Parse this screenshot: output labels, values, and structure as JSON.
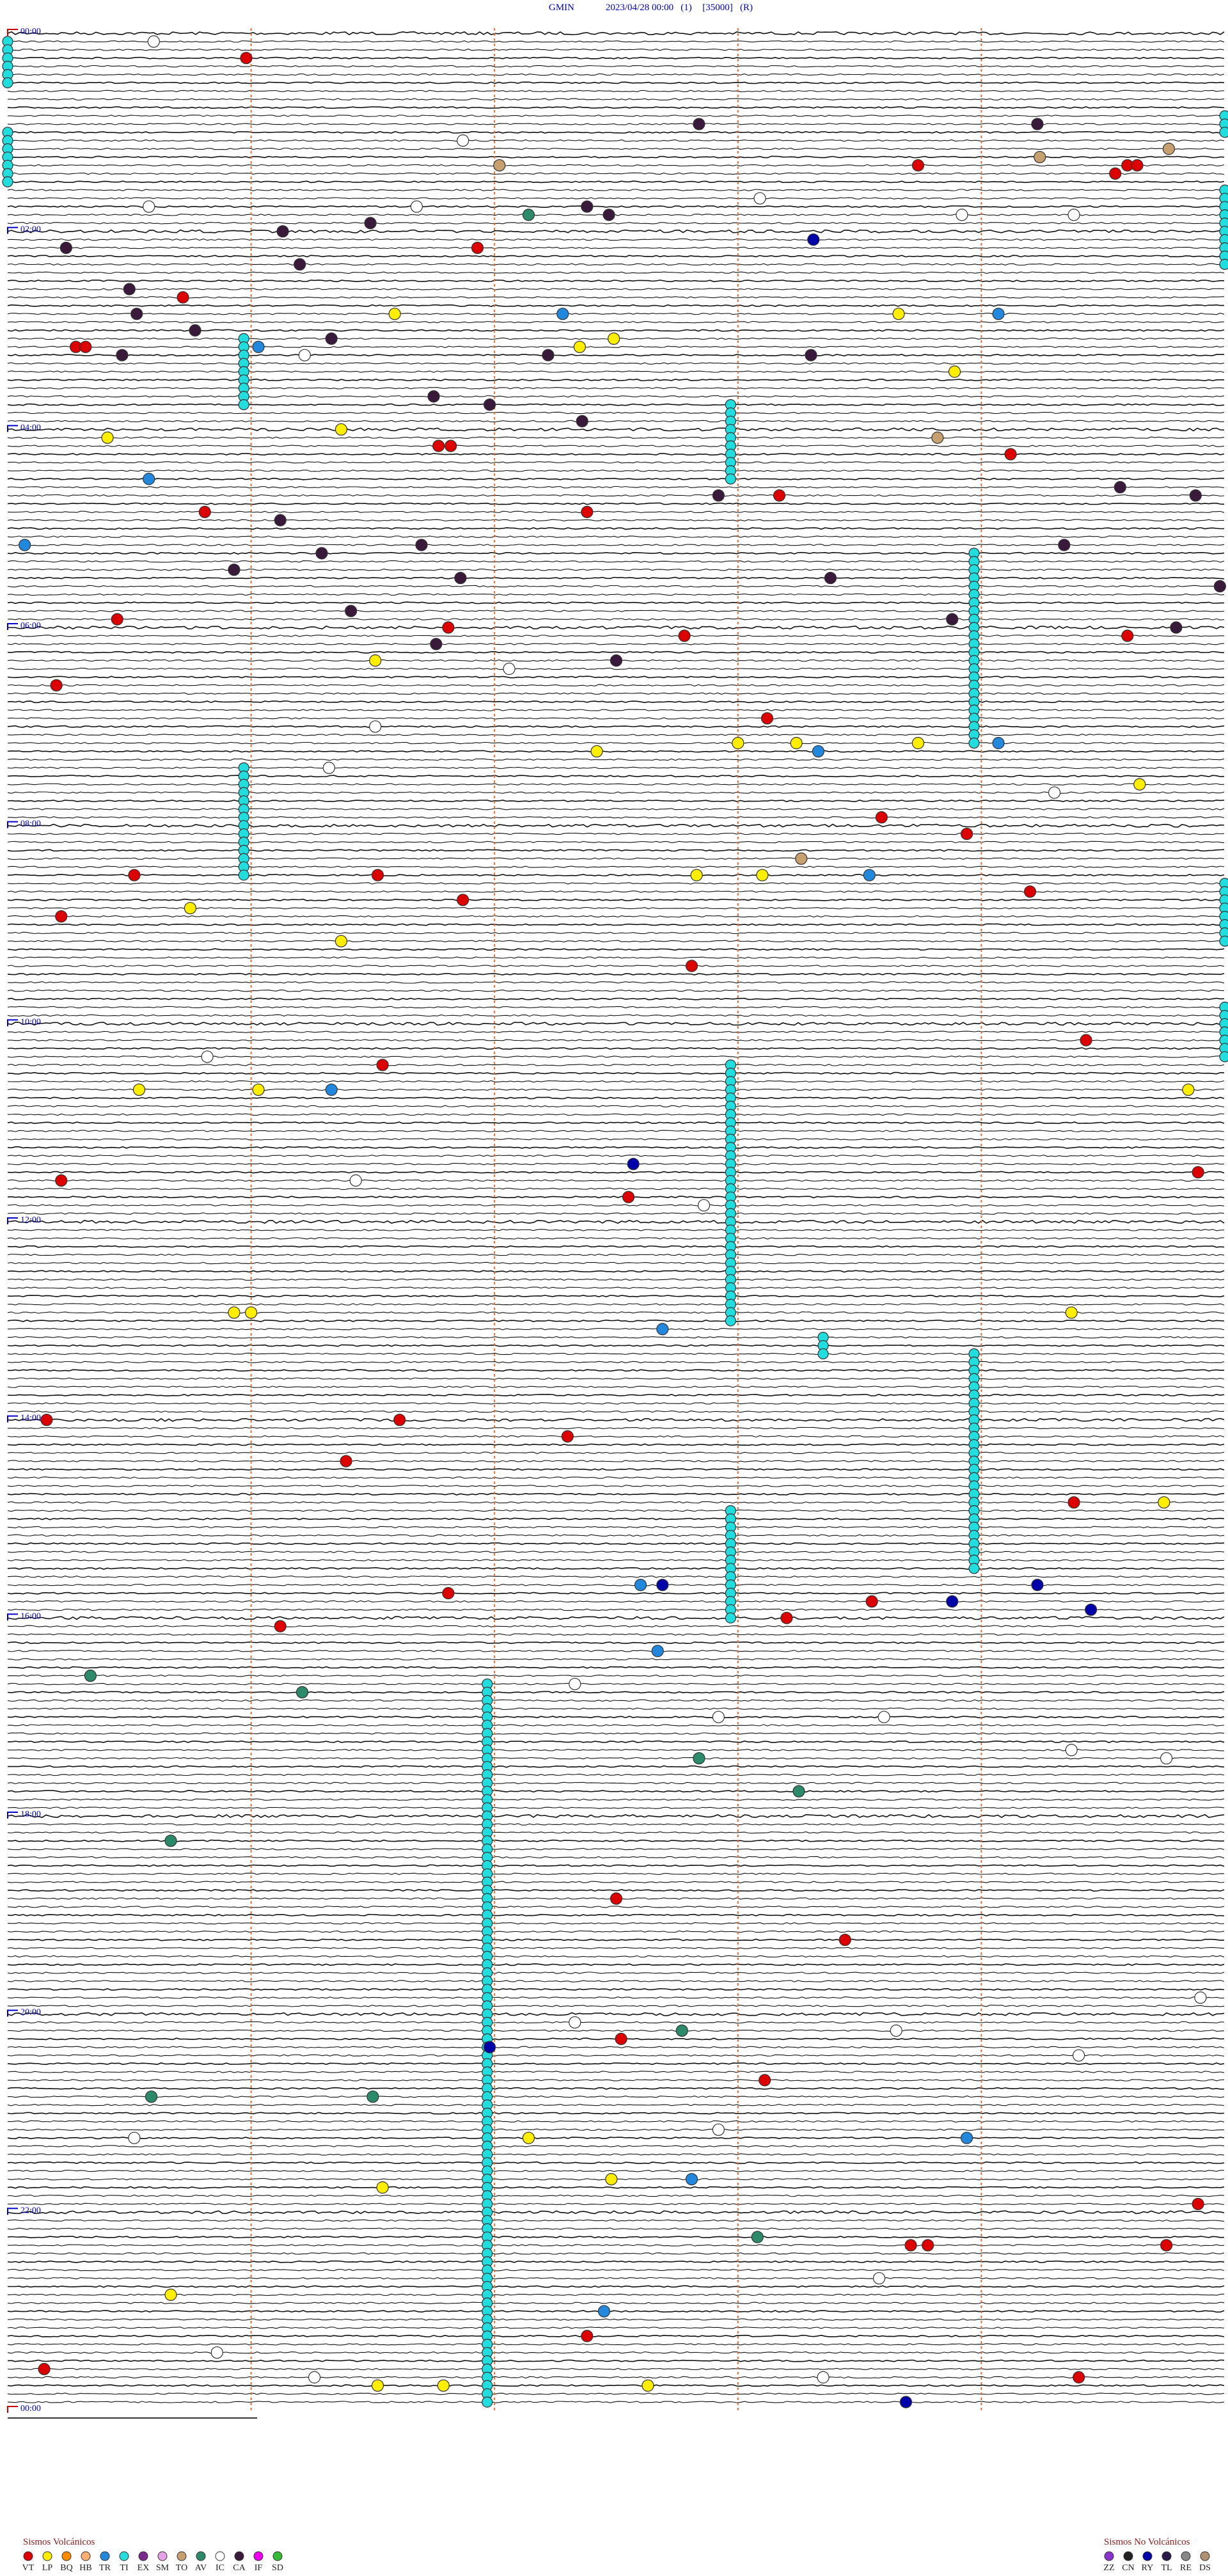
{
  "header": {
    "station": "GMIN",
    "datetime": "2023/04/28 00:00",
    "channel": "(1)",
    "gain": "[35000]",
    "mode": "(R)"
  },
  "hour_labels": [
    "00:00",
    "02:00",
    "04:00",
    "06:00",
    "08:00",
    "10:00",
    "12:00",
    "14:00",
    "16:00",
    "18:00",
    "20:00",
    "22:00",
    "00:00"
  ],
  "legend_volcanic": {
    "title": "Sismos Volcánicos",
    "types": [
      {
        "code": "VT",
        "color": "#dd0000"
      },
      {
        "code": "LP",
        "color": "#ffee00"
      },
      {
        "code": "BQ",
        "color": "#ff8c00"
      },
      {
        "code": "HB",
        "color": "#ffb070"
      },
      {
        "code": "TR",
        "color": "#2288dd"
      },
      {
        "code": "TI",
        "color": "#22dddd"
      },
      {
        "code": "EX",
        "color": "#7a2a8a"
      },
      {
        "code": "SM",
        "color": "#e8a0e8"
      },
      {
        "code": "TO",
        "color": "#c8a070"
      },
      {
        "code": "AV",
        "color": "#2a8a6a"
      },
      {
        "code": "IC",
        "color": "#ffffff"
      },
      {
        "code": "CA",
        "color": "#3a1a3a"
      },
      {
        "code": "IF",
        "color": "#ee00ee"
      },
      {
        "code": "SD",
        "color": "#33bb33"
      }
    ]
  },
  "legend_non_volcanic": {
    "title": "Sismos No Volcánicos",
    "types": [
      {
        "code": "ZZ",
        "color": "#8833cc"
      },
      {
        "code": "CN",
        "color": "#222222"
      },
      {
        "code": "RY",
        "color": "#0000aa"
      },
      {
        "code": "TL",
        "color": "#2a1a4a"
      },
      {
        "code": "RE",
        "color": "#888888"
      },
      {
        "code": "DS",
        "color": "#b09070"
      }
    ]
  },
  "tremor_runs": [
    {
      "type": "TI",
      "min": 0,
      "rows": [
        1,
        6
      ]
    },
    {
      "type": "TI",
      "min": 5,
      "rows": [
        10,
        12
      ]
    },
    {
      "type": "TI",
      "min": 0,
      "rows": [
        12,
        18
      ]
    },
    {
      "type": "TI",
      "min": 5,
      "rows": [
        19,
        28
      ]
    },
    {
      "type": "TI",
      "min": 0.97,
      "rows": [
        37,
        45
      ]
    },
    {
      "type": "TI",
      "min": 2.97,
      "rows": [
        45,
        54
      ]
    },
    {
      "type": "TI",
      "min": 3.97,
      "rows": [
        63,
        86
      ]
    },
    {
      "type": "TI",
      "min": 0.97,
      "rows": [
        89,
        102
      ]
    },
    {
      "type": "TI",
      "min": 5,
      "rows": [
        103,
        110
      ]
    },
    {
      "type": "TI",
      "min": 5,
      "rows": [
        118,
        124
      ]
    },
    {
      "type": "TI",
      "min": 2.97,
      "rows": [
        125,
        156
      ]
    },
    {
      "type": "TI",
      "min": 3.97,
      "rows": [
        160,
        186
      ]
    },
    {
      "type": "TI",
      "min": 2.97,
      "rows": [
        179,
        192
      ]
    },
    {
      "type": "TI",
      "min": 1.97,
      "rows": [
        200,
        287
      ]
    },
    {
      "type": "TI",
      "min": 3.35,
      "rows": [
        158,
        160
      ]
    }
  ],
  "events": [
    {
      "row": 1,
      "min": 0.6,
      "type": "IC"
    },
    {
      "row": 3,
      "min": 0.98,
      "type": "VT"
    },
    {
      "row": 11,
      "min": 2.84,
      "type": "CA"
    },
    {
      "row": 11,
      "min": 4.23,
      "type": "CA"
    },
    {
      "row": 13,
      "min": 1.87,
      "type": "IC"
    },
    {
      "row": 16,
      "min": 2.02,
      "type": "TO"
    },
    {
      "row": 16,
      "min": 3.74,
      "type": "VT"
    },
    {
      "row": 16,
      "min": 4.6,
      "type": "VT"
    },
    {
      "row": 16,
      "min": 4.64,
      "type": "VT"
    },
    {
      "row": 17,
      "min": 4.55,
      "type": "VT"
    },
    {
      "row": 14,
      "min": 4.77,
      "type": "TO"
    },
    {
      "row": 15,
      "min": 4.24,
      "type": "TO"
    },
    {
      "row": 21,
      "min": 0.58,
      "type": "IC"
    },
    {
      "row": 22,
      "min": 2.14,
      "type": "AV"
    },
    {
      "row": 21,
      "min": 2.38,
      "type": "CA"
    },
    {
      "row": 22,
      "min": 2.47,
      "type": "CA"
    },
    {
      "row": 25,
      "min": 3.31,
      "type": "RY"
    },
    {
      "row": 22,
      "min": 3.92,
      "type": "IC"
    },
    {
      "row": 26,
      "min": 0.24,
      "type": "CA"
    },
    {
      "row": 26,
      "min": 1.93,
      "type": "VT"
    },
    {
      "row": 32,
      "min": 0.72,
      "type": "VT"
    },
    {
      "row": 34,
      "min": 1.59,
      "type": "LP"
    },
    {
      "row": 34,
      "min": 2.28,
      "type": "TR"
    },
    {
      "row": 34,
      "min": 3.66,
      "type": "LP"
    },
    {
      "row": 34,
      "min": 4.07,
      "type": "TR"
    },
    {
      "row": 38,
      "min": 0.28,
      "type": "VT"
    },
    {
      "row": 38,
      "min": 0.32,
      "type": "VT"
    },
    {
      "row": 38,
      "min": 2.35,
      "type": "LP"
    },
    {
      "row": 37,
      "min": 2.49,
      "type": "LP"
    },
    {
      "row": 38,
      "min": 1.03,
      "type": "TR"
    },
    {
      "row": 41,
      "min": 3.89,
      "type": "LP"
    },
    {
      "row": 49,
      "min": 0.41,
      "type": "LP"
    },
    {
      "row": 48,
      "min": 1.37,
      "type": "LP"
    },
    {
      "row": 50,
      "min": 1.77,
      "type": "VT"
    },
    {
      "row": 50,
      "min": 1.82,
      "type": "VT"
    },
    {
      "row": 51,
      "min": 4.12,
      "type": "VT"
    },
    {
      "row": 49,
      "min": 3.82,
      "type": "TO"
    },
    {
      "row": 54,
      "min": 0.58,
      "type": "TR"
    },
    {
      "row": 56,
      "min": 3.17,
      "type": "VT"
    },
    {
      "row": 58,
      "min": 0.81,
      "type": "VT"
    },
    {
      "row": 58,
      "min": 2.38,
      "type": "VT"
    },
    {
      "row": 62,
      "min": 0.07,
      "type": "TR"
    },
    {
      "row": 71,
      "min": 0.45,
      "type": "VT"
    },
    {
      "row": 72,
      "min": 1.81,
      "type": "VT"
    },
    {
      "row": 73,
      "min": 2.78,
      "type": "VT"
    },
    {
      "row": 73,
      "min": 4.6,
      "type": "VT"
    },
    {
      "row": 77,
      "min": 2.06,
      "type": "IC"
    },
    {
      "row": 76,
      "min": 1.51,
      "type": "LP"
    },
    {
      "row": 79,
      "min": 0.2,
      "type": "VT"
    },
    {
      "row": 83,
      "min": 3.12,
      "type": "VT"
    },
    {
      "row": 86,
      "min": 3.0,
      "type": "LP"
    },
    {
      "row": 86,
      "min": 3.24,
      "type": "LP"
    },
    {
      "row": 87,
      "min": 3.33,
      "type": "TR"
    },
    {
      "row": 87,
      "min": 2.42,
      "type": "LP"
    },
    {
      "row": 86,
      "min": 3.74,
      "type": "LP"
    },
    {
      "row": 86,
      "min": 4.07,
      "type": "TR"
    },
    {
      "row": 91,
      "min": 4.65,
      "type": "LP"
    },
    {
      "row": 95,
      "min": 3.59,
      "type": "VT"
    },
    {
      "row": 97,
      "min": 3.94,
      "type": "VT"
    },
    {
      "row": 102,
      "min": 0.52,
      "type": "VT"
    },
    {
      "row": 102,
      "min": 1.52,
      "type": "VT"
    },
    {
      "row": 102,
      "min": 2.83,
      "type": "LP"
    },
    {
      "row": 102,
      "min": 3.1,
      "type": "LP"
    },
    {
      "row": 102,
      "min": 3.54,
      "type": "TR"
    },
    {
      "row": 100,
      "min": 3.26,
      "type": "TO"
    },
    {
      "row": 104,
      "min": 4.2,
      "type": "VT"
    },
    {
      "row": 105,
      "min": 1.87,
      "type": "VT"
    },
    {
      "row": 106,
      "min": 0.75,
      "type": "LP"
    },
    {
      "row": 107,
      "min": 0.22,
      "type": "VT"
    },
    {
      "row": 110,
      "min": 1.37,
      "type": "LP"
    },
    {
      "row": 113,
      "min": 2.81,
      "type": "VT"
    },
    {
      "row": 125,
      "min": 1.54,
      "type": "VT"
    },
    {
      "row": 128,
      "min": 1.33,
      "type": "TR"
    },
    {
      "row": 128,
      "min": 0.54,
      "type": "LP"
    },
    {
      "row": 128,
      "min": 1.03,
      "type": "LP"
    },
    {
      "row": 128,
      "min": 4.85,
      "type": "LP"
    },
    {
      "row": 122,
      "min": 4.43,
      "type": "VT"
    },
    {
      "row": 137,
      "min": 2.57,
      "type": "RY"
    },
    {
      "row": 141,
      "min": 2.55,
      "type": "VT"
    },
    {
      "row": 139,
      "min": 0.22,
      "type": "VT"
    },
    {
      "row": 138,
      "min": 4.89,
      "type": "VT"
    },
    {
      "row": 155,
      "min": 0.93,
      "type": "LP"
    },
    {
      "row": 155,
      "min": 1.0,
      "type": "LP"
    },
    {
      "row": 157,
      "min": 2.69,
      "type": "TR"
    },
    {
      "row": 155,
      "min": 4.37,
      "type": "LP"
    },
    {
      "row": 168,
      "min": 1.61,
      "type": "VT"
    },
    {
      "row": 168,
      "min": 0.16,
      "type": "VT"
    },
    {
      "row": 170,
      "min": 2.3,
      "type": "VT"
    },
    {
      "row": 173,
      "min": 1.39,
      "type": "VT"
    },
    {
      "row": 178,
      "min": 4.38,
      "type": "VT"
    },
    {
      "row": 178,
      "min": 4.75,
      "type": "LP"
    },
    {
      "row": 188,
      "min": 2.69,
      "type": "RY"
    },
    {
      "row": 188,
      "min": 2.6,
      "type": "TR"
    },
    {
      "row": 190,
      "min": 3.55,
      "type": "VT"
    },
    {
      "row": 190,
      "min": 3.88,
      "type": "RY"
    },
    {
      "row": 188,
      "min": 4.23,
      "type": "RY"
    },
    {
      "row": 191,
      "min": 4.45,
      "type": "RY"
    },
    {
      "row": 189,
      "min": 1.81,
      "type": "VT"
    },
    {
      "row": 192,
      "min": 3.2,
      "type": "VT"
    },
    {
      "row": 193,
      "min": 1.12,
      "type": "VT"
    },
    {
      "row": 196,
      "min": 2.67,
      "type": "TR"
    },
    {
      "row": 199,
      "min": 0.34,
      "type": "AV"
    },
    {
      "row": 201,
      "min": 1.21,
      "type": "AV"
    },
    {
      "row": 209,
      "min": 2.84,
      "type": "AV"
    },
    {
      "row": 213,
      "min": 3.25,
      "type": "AV"
    },
    {
      "row": 219,
      "min": 0.67,
      "type": "AV"
    },
    {
      "row": 226,
      "min": 2.5,
      "type": "VT"
    },
    {
      "row": 231,
      "min": 3.44,
      "type": "VT"
    },
    {
      "row": 243,
      "min": 2.52,
      "type": "VT"
    },
    {
      "row": 242,
      "min": 2.77,
      "type": "AV"
    },
    {
      "row": 248,
      "min": 3.11,
      "type": "VT"
    },
    {
      "row": 250,
      "min": 0.59,
      "type": "AV"
    },
    {
      "row": 250,
      "min": 1.5,
      "type": "AV"
    },
    {
      "row": 255,
      "min": 2.14,
      "type": "LP"
    },
    {
      "row": 255,
      "min": 3.94,
      "type": "TR"
    },
    {
      "row": 260,
      "min": 2.48,
      "type": "LP"
    },
    {
      "row": 260,
      "min": 2.81,
      "type": "TR"
    },
    {
      "row": 261,
      "min": 1.54,
      "type": "LP"
    },
    {
      "row": 267,
      "min": 3.08,
      "type": "AV"
    },
    {
      "row": 268,
      "min": 3.71,
      "type": "VT"
    },
    {
      "row": 268,
      "min": 3.78,
      "type": "VT"
    },
    {
      "row": 268,
      "min": 4.76,
      "type": "VT"
    },
    {
      "row": 263,
      "min": 4.89,
      "type": "VT"
    },
    {
      "row": 274,
      "min": 0.67,
      "type": "LP"
    },
    {
      "row": 276,
      "min": 2.45,
      "type": "TR"
    },
    {
      "row": 279,
      "min": 2.38,
      "type": "VT"
    },
    {
      "row": 283,
      "min": 0.15,
      "type": "VT"
    },
    {
      "row": 285,
      "min": 2.63,
      "type": "LP"
    },
    {
      "row": 285,
      "min": 1.52,
      "type": "LP"
    },
    {
      "row": 285,
      "min": 1.79,
      "type": "LP"
    },
    {
      "row": 284,
      "min": 4.4,
      "type": "VT"
    },
    {
      "row": 287,
      "min": 3.69,
      "type": "RY"
    },
    {
      "row": 244,
      "min": 1.98,
      "type": "RY"
    },
    {
      "row": 24,
      "min": 1.13,
      "type": "CA"
    },
    {
      "row": 23,
      "min": 1.49,
      "type": "CA"
    },
    {
      "row": 28,
      "min": 1.2,
      "type": "CA"
    },
    {
      "row": 31,
      "min": 0.5,
      "type": "CA"
    },
    {
      "row": 34,
      "min": 0.53,
      "type": "CA"
    },
    {
      "row": 36,
      "min": 0.77,
      "type": "CA"
    },
    {
      "row": 39,
      "min": 0.47,
      "type": "CA"
    },
    {
      "row": 37,
      "min": 1.33,
      "type": "CA"
    },
    {
      "row": 39,
      "min": 2.22,
      "type": "CA"
    },
    {
      "row": 39,
      "min": 3.3,
      "type": "CA"
    },
    {
      "row": 44,
      "min": 1.75,
      "type": "CA"
    },
    {
      "row": 45,
      "min": 1.98,
      "type": "CA"
    },
    {
      "row": 47,
      "min": 2.36,
      "type": "CA"
    },
    {
      "row": 56,
      "min": 2.92,
      "type": "CA"
    },
    {
      "row": 59,
      "min": 1.12,
      "type": "CA"
    },
    {
      "row": 62,
      "min": 1.7,
      "type": "CA"
    },
    {
      "row": 63,
      "min": 1.29,
      "type": "CA"
    },
    {
      "row": 65,
      "min": 0.93,
      "type": "CA"
    },
    {
      "row": 66,
      "min": 1.86,
      "type": "CA"
    },
    {
      "row": 66,
      "min": 3.38,
      "type": "CA"
    },
    {
      "row": 70,
      "min": 1.41,
      "type": "CA"
    },
    {
      "row": 74,
      "min": 1.76,
      "type": "CA"
    },
    {
      "row": 76,
      "min": 2.5,
      "type": "CA"
    },
    {
      "row": 71,
      "min": 3.88,
      "type": "CA"
    },
    {
      "row": 62,
      "min": 4.34,
      "type": "CA"
    },
    {
      "row": 55,
      "min": 4.57,
      "type": "CA"
    },
    {
      "row": 56,
      "min": 4.88,
      "type": "CA"
    },
    {
      "row": 67,
      "min": 4.98,
      "type": "CA"
    },
    {
      "row": 72,
      "min": 4.8,
      "type": "CA"
    },
    {
      "row": 39,
      "min": 1.22,
      "type": "IC"
    },
    {
      "row": 21,
      "min": 1.68,
      "type": "IC"
    },
    {
      "row": 20,
      "min": 3.09,
      "type": "IC"
    },
    {
      "row": 22,
      "min": 4.38,
      "type": "IC"
    },
    {
      "row": 89,
      "min": 1.32,
      "type": "IC"
    },
    {
      "row": 92,
      "min": 4.3,
      "type": "IC"
    },
    {
      "row": 84,
      "min": 1.51,
      "type": "IC"
    },
    {
      "row": 124,
      "min": 0.82,
      "type": "IC"
    },
    {
      "row": 139,
      "min": 1.43,
      "type": "IC"
    },
    {
      "row": 142,
      "min": 2.86,
      "type": "IC"
    },
    {
      "row": 200,
      "min": 2.33,
      "type": "IC"
    },
    {
      "row": 204,
      "min": 2.92,
      "type": "IC"
    },
    {
      "row": 204,
      "min": 3.6,
      "type": "IC"
    },
    {
      "row": 208,
      "min": 4.37,
      "type": "IC"
    },
    {
      "row": 209,
      "min": 4.76,
      "type": "IC"
    },
    {
      "row": 238,
      "min": 4.9,
      "type": "IC"
    },
    {
      "row": 242,
      "min": 3.65,
      "type": "IC"
    },
    {
      "row": 245,
      "min": 4.4,
      "type": "IC"
    },
    {
      "row": 281,
      "min": 0.86,
      "type": "IC"
    },
    {
      "row": 284,
      "min": 1.26,
      "type": "IC"
    },
    {
      "row": 284,
      "min": 3.35,
      "type": "IC"
    },
    {
      "row": 272,
      "min": 3.58,
      "type": "IC"
    },
    {
      "row": 254,
      "min": 2.92,
      "type": "IC"
    },
    {
      "row": 255,
      "min": 0.52,
      "type": "IC"
    },
    {
      "row": 241,
      "min": 2.33,
      "type": "IC"
    }
  ]
}
